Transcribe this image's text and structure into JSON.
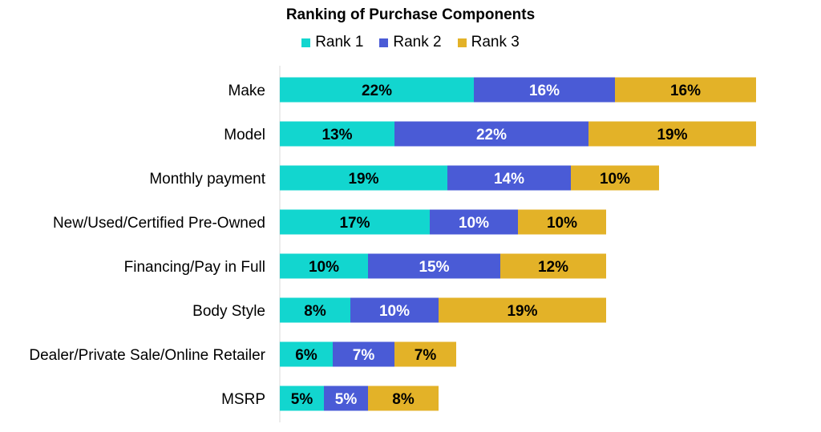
{
  "chart_data": {
    "type": "bar",
    "orientation": "horizontal",
    "stacked": true,
    "title": "Ranking of Purchase Components",
    "legend_position": "top",
    "categories": [
      "Make",
      "Model",
      "Monthly payment",
      "New/Used/Certified Pre-Owned",
      "Financing/Pay in Full",
      "Body Style",
      "Dealer/Private Sale/Online Retailer",
      "MSRP"
    ],
    "series": [
      {
        "name": "Rank 1",
        "color": "#12D6CF",
        "label_color": "#000000",
        "values": [
          22,
          13,
          19,
          17,
          10,
          8,
          6,
          5
        ]
      },
      {
        "name": "Rank 2",
        "color": "#4A5BD6",
        "label_color": "#ffffff",
        "values": [
          16,
          22,
          14,
          10,
          15,
          10,
          7,
          5
        ]
      },
      {
        "name": "Rank 3",
        "color": "#E3B228",
        "label_color": "#000000",
        "values": [
          16,
          19,
          10,
          10,
          12,
          19,
          7,
          8
        ]
      }
    ],
    "value_suffix": "%",
    "grid": false
  }
}
